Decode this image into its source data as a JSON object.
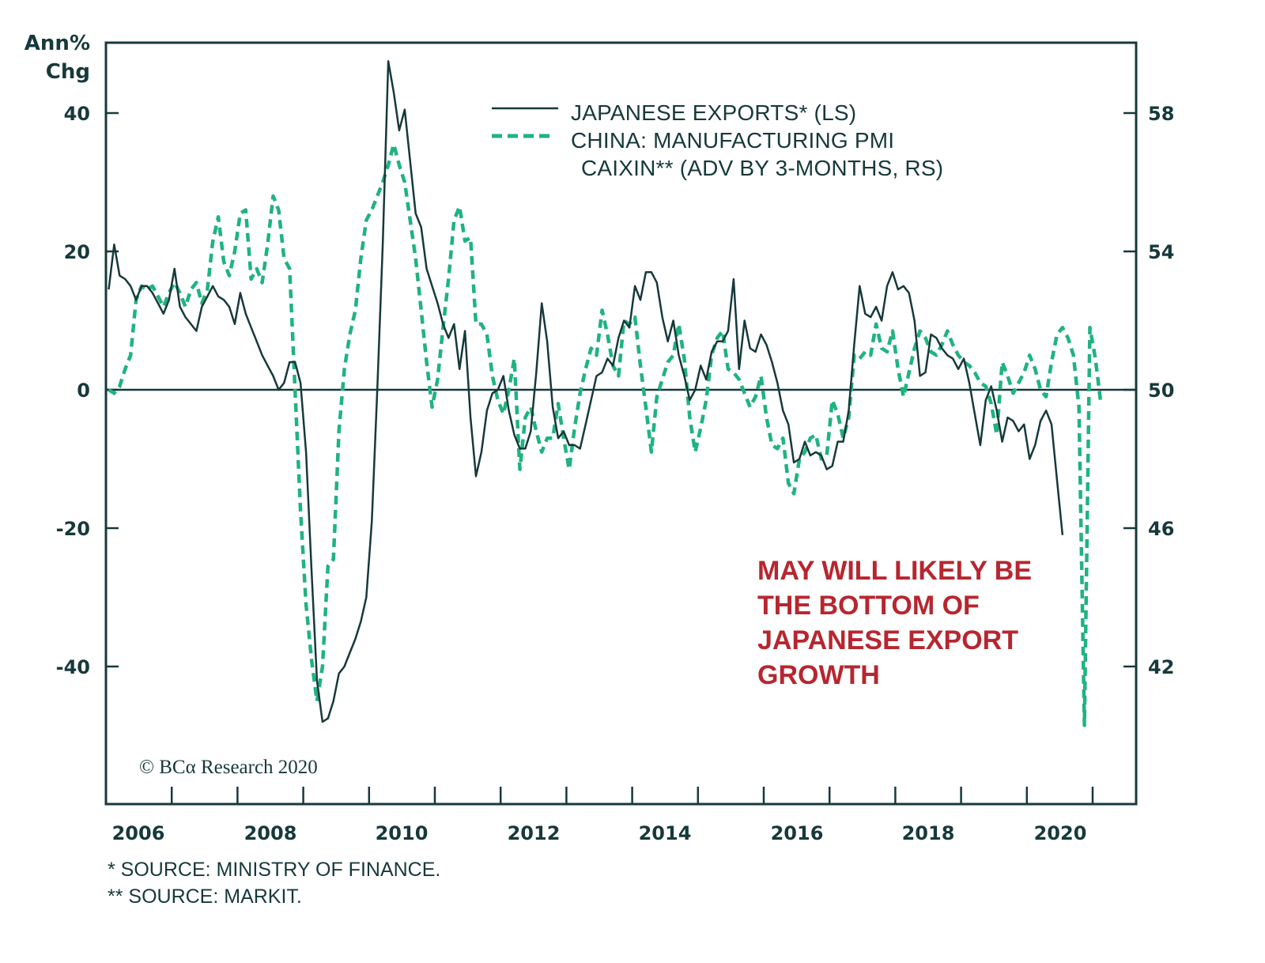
{
  "chart_data": {
    "type": "line",
    "title": "",
    "ylabel_left": [
      "Ann%",
      "Chg"
    ],
    "ylabel_right": "",
    "xlabel": "",
    "x_ticks": [
      "2006",
      "2008",
      "2010",
      "2012",
      "2014",
      "2016",
      "2018",
      "2020"
    ],
    "x_range": [
      "2006-01",
      "2022-08"
    ],
    "y_left_ticks": [
      "40",
      "20",
      "0",
      "-20",
      "-40"
    ],
    "y_left_range": [
      -60,
      50
    ],
    "y_right_ticks": [
      "58",
      "54",
      "50",
      "46",
      "42"
    ],
    "y_right_range": [
      38,
      60
    ],
    "zero_line": true,
    "grid": false,
    "legend_position": "top-center",
    "legend": [
      {
        "label": "JAPANESE EXPORTS* (LS)",
        "style": "solid"
      },
      {
        "label_lines": [
          "CHINA: MANUFACTURING PMI",
          "CAIXIN** (ADV BY 3-MONTHS, RS)"
        ],
        "style": "dashed"
      }
    ],
    "series": [
      {
        "name": "Japanese Exports (LS)",
        "axis": "left",
        "start": "2006-01",
        "frequency": "monthly",
        "color": "#17393b",
        "values": [
          14.5,
          21.0,
          16.5,
          16.0,
          15.0,
          13.0,
          15.0,
          15.0,
          14.0,
          12.5,
          11.0,
          13.0,
          17.5,
          12.0,
          10.5,
          9.5,
          8.5,
          12.0,
          13.5,
          15.0,
          13.5,
          13.0,
          12.0,
          9.5,
          14.0,
          11.0,
          9.0,
          7.0,
          5.0,
          3.5,
          2.0,
          0.0,
          1.0,
          4.0,
          4.0,
          1.0,
          -9.0,
          -26.0,
          -42.0,
          -48.0,
          -47.5,
          -45.0,
          -41.0,
          -40.0,
          -38.0,
          -36.0,
          -33.5,
          -30.0,
          -19.0,
          0.0,
          21.0,
          47.5,
          43.0,
          37.5,
          40.5,
          33.0,
          25.5,
          23.5,
          17.5,
          15.0,
          12.5,
          9.5,
          7.5,
          9.5,
          3.0,
          8.5,
          -4.0,
          -12.5,
          -9.0,
          -3.0,
          -0.5,
          0.0,
          2.0,
          -3.0,
          -6.5,
          -8.5,
          -8.5,
          -6.0,
          2.5,
          12.5,
          7.0,
          -2.5,
          -7.0,
          -6.0,
          -8.0,
          -8.0,
          -8.5,
          -5.0,
          -1.5,
          2.0,
          2.5,
          4.5,
          3.5,
          7.5,
          10.0,
          9.0,
          15.0,
          13.0,
          17.0,
          17.0,
          15.5,
          10.5,
          7.0,
          10.0,
          5.0,
          2.0,
          -1.5,
          0.0,
          3.5,
          1.5,
          5.5,
          7.0,
          7.0,
          8.5,
          16.0,
          3.0,
          10.0,
          6.0,
          5.5,
          8.0,
          6.5,
          4.0,
          1.0,
          -3.0,
          -5.0,
          -10.5,
          -10.0,
          -7.5,
          -9.5,
          -9.0,
          -9.5,
          -11.5,
          -11.0,
          -7.5,
          -7.5,
          -3.0,
          6.5,
          15.0,
          11.0,
          10.5,
          12.0,
          10.0,
          15.0,
          17.0,
          14.5,
          15.0,
          14.0,
          10.0,
          2.0,
          2.5,
          8.0,
          7.5,
          6.0,
          5.0,
          4.5,
          3.0,
          4.5,
          1.0,
          -3.5,
          -8.0,
          -1.5,
          0.5,
          -3.0,
          -7.5,
          -4.0,
          -4.5,
          -6.0,
          -5.0,
          -10.0,
          -8.0,
          -4.5,
          -3.0,
          -5.0,
          -13.0,
          -21.0
        ]
      },
      {
        "name": "China: Manufacturing PMI Caixin (adv by 3-months, RS)",
        "axis": "right",
        "start": "2006-01",
        "frequency": "monthly",
        "color": "#1fb37f",
        "values": [
          50.0,
          49.9,
          50.1,
          50.6,
          51.0,
          52.6,
          53.0,
          52.9,
          53.0,
          52.7,
          52.4,
          52.8,
          53.1,
          52.8,
          52.4,
          52.9,
          53.1,
          52.5,
          52.9,
          54.3,
          55.0,
          53.7,
          53.3,
          54.0,
          55.1,
          55.2,
          53.2,
          53.5,
          53.1,
          54.2,
          55.6,
          55.2,
          53.8,
          53.5,
          50.0,
          46.5,
          43.8,
          42.2,
          41.0,
          42.0,
          44.9,
          45.1,
          48.8,
          50.6,
          51.6,
          52.3,
          53.8,
          54.9,
          55.2,
          55.6,
          56.0,
          56.5,
          57.1,
          56.5,
          56.0,
          54.9,
          53.8,
          52.3,
          50.8,
          49.5,
          50.3,
          51.8,
          53.2,
          54.9,
          55.3,
          54.3,
          54.4,
          51.9,
          51.9,
          51.6,
          50.4,
          49.7,
          49.3,
          50.0,
          50.9,
          47.7,
          49.2,
          49.5,
          48.8,
          48.2,
          48.6,
          48.6,
          49.6,
          48.6,
          47.7,
          48.9,
          49.9,
          50.6,
          51.2,
          51.0,
          52.3,
          51.6,
          50.7,
          50.4,
          52.0,
          51.9,
          52.1,
          50.7,
          49.5,
          48.2,
          49.8,
          50.3,
          50.8,
          51.0,
          51.9,
          50.9,
          49.2,
          48.2,
          48.9,
          49.7,
          51.0,
          51.5,
          51.7,
          50.6,
          50.5,
          50.3,
          49.9,
          49.5,
          49.8,
          50.4,
          49.2,
          48.4,
          48.3,
          48.6,
          47.3,
          47.0,
          48.0,
          48.2,
          48.6,
          48.7,
          48.0,
          48.1,
          49.7,
          49.3,
          48.6,
          49.2,
          51.0,
          50.9,
          51.1,
          51.0,
          51.9,
          51.2,
          51.1,
          51.7,
          50.6,
          49.8,
          50.5,
          51.2,
          51.7,
          51.5,
          51.1,
          51.0,
          51.3,
          51.7,
          51.3,
          51.0,
          50.8,
          50.7,
          50.5,
          50.2,
          50.1,
          49.6,
          48.7,
          50.8,
          50.4,
          49.9,
          50.2,
          50.5,
          51.0,
          50.6,
          50.0,
          49.8,
          50.8,
          51.6,
          51.8,
          51.5,
          51.0,
          49.5,
          40.3,
          51.8,
          50.9,
          49.6
        ]
      }
    ],
    "annotation": [
      "MAY WILL LIKELY BE",
      "THE BOTTOM OF",
      "JAPANESE EXPORT",
      "GROWTH"
    ],
    "copyright": "© BCα Research 2020",
    "footnotes": [
      "*  SOURCE: MINISTRY OF FINANCE.",
      "** SOURCE: MARKIT."
    ]
  }
}
